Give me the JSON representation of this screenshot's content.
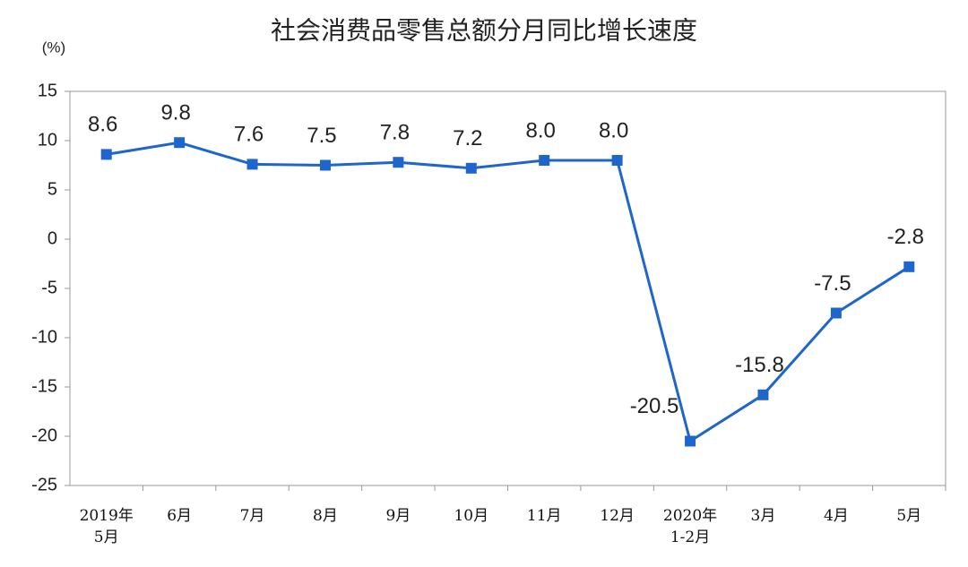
{
  "chart_data": {
    "type": "line",
    "title": "社会消费品零售总额分月同比增长速度",
    "y_label": "(%)",
    "categories": [
      "2019年\n5月",
      "6月",
      "7月",
      "8月",
      "9月",
      "10月",
      "11月",
      "12月",
      "2020年\n1-2月",
      "3月",
      "4月",
      "5月"
    ],
    "series": [
      {
        "name": "同比增长速度",
        "color": "#1f66cc",
        "values": [
          8.6,
          9.8,
          7.6,
          7.5,
          7.8,
          7.2,
          8.0,
          8.0,
          -20.5,
          -15.8,
          -7.5,
          -2.8
        ],
        "value_labels": [
          "8.6",
          "9.8",
          "7.6",
          "7.5",
          "7.8",
          "7.2",
          "8.0",
          "8.0",
          "-20.5",
          "-15.8",
          "-7.5",
          "-2.8"
        ]
      }
    ],
    "ylim": [
      -25,
      15
    ],
    "yticks": [
      -25,
      -20,
      -15,
      -10,
      -5,
      0,
      5,
      10,
      15
    ],
    "grid": false
  }
}
